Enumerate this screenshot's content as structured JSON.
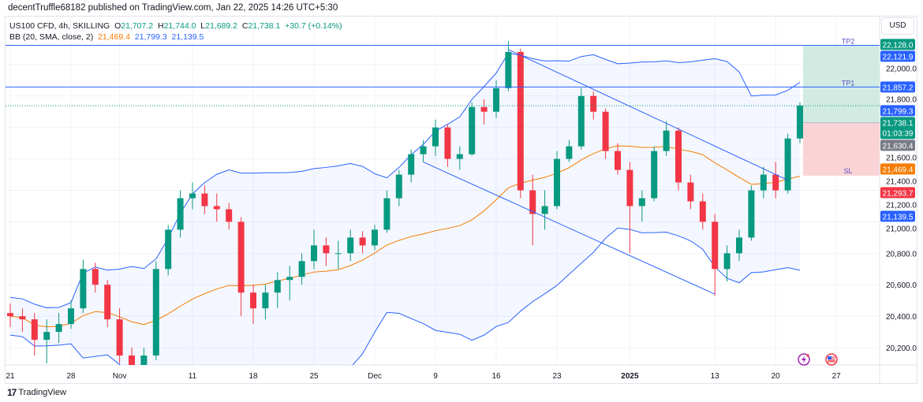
{
  "published": "decentTruffle68182 published on TradingView.com, Jan 22, 2025 14:26 UTC+5:30",
  "legend": {
    "symbol": "US100 CFD, 4h, SKILLING",
    "o_label": "O",
    "o": "21,707.2",
    "h_label": "H",
    "h": "21,744.0",
    "l_label": "L",
    "l": "21,689.2",
    "c_label": "C",
    "c": "21,738.1",
    "change": "+30.7 (+0.14%)",
    "bb_label": "BB (20, SMA, close, 2)",
    "bb_basis": "21,469.4",
    "bb_upper": "21,799.3",
    "bb_lower": "21,139.5"
  },
  "currency_button": "USD",
  "brand": "TradingView",
  "colors": {
    "up": "#089981",
    "down": "#f23645",
    "bb_band": "#2962ff",
    "bb_basis": "#f57c00",
    "tp_zone": "#d1ebe3",
    "sl_zone": "#f9d3d6",
    "grid": "#f0f3fa"
  },
  "icons": [
    "tradingview-logo-icon",
    "lightning-event-icon",
    "us-flag-event-icon"
  ],
  "chart_data": {
    "type": "candlestick",
    "ylim": [
      20090,
      22305
    ],
    "y_ticks": [
      20200,
      20400,
      20600,
      20800,
      21000,
      21200,
      21400,
      21600,
      21800,
      22000
    ],
    "y_tick_labels": [
      "20,200.0",
      "20,400.0",
      "20,600.0",
      "20,800.0",
      "21,000.0",
      "21,200.0",
      "21,400.0",
      "21,600.0",
      "21,800.0",
      "22,000.0"
    ],
    "x_ticks": [
      {
        "label": "21",
        "date": "2024-10-21"
      },
      {
        "label": "28",
        "date": "2024-10-28"
      },
      {
        "label": "Nov",
        "date": "2024-11-01"
      },
      {
        "label": "11",
        "date": "2024-11-11"
      },
      {
        "label": "18",
        "date": "2024-11-18"
      },
      {
        "label": "25",
        "date": "2024-11-25"
      },
      {
        "label": "Dec",
        "date": "2024-12-02"
      },
      {
        "label": "9",
        "date": "2024-12-09"
      },
      {
        "label": "16",
        "date": "2024-12-16"
      },
      {
        "label": "23",
        "date": "2024-12-23"
      },
      {
        "label": "2025",
        "date": "2025-01-02"
      },
      {
        "label": "13",
        "date": "2025-01-13"
      },
      {
        "label": "20",
        "date": "2025-01-20"
      },
      {
        "label": "27",
        "date": "2025-01-27"
      }
    ],
    "grid": true,
    "candles_ohlc": [
      [
        "2024-10-21",
        20420,
        20480,
        20330,
        20400
      ],
      [
        "2024-10-22",
        20400,
        20450,
        20300,
        20380
      ],
      [
        "2024-10-23",
        20380,
        20420,
        20150,
        20250
      ],
      [
        "2024-10-24",
        20250,
        20380,
        20100,
        20300
      ],
      [
        "2024-10-25",
        20300,
        20420,
        20230,
        20350
      ],
      [
        "2024-10-28",
        20350,
        20500,
        20320,
        20450
      ],
      [
        "2024-10-29",
        20450,
        20760,
        20420,
        20700
      ],
      [
        "2024-10-30",
        20700,
        20740,
        20550,
        20600
      ],
      [
        "2024-10-31",
        20600,
        20630,
        20330,
        20380
      ],
      [
        "2024-11-01",
        20380,
        20450,
        20100,
        20150
      ],
      [
        "2024-11-04",
        20150,
        20200,
        19950,
        20050
      ],
      [
        "2024-11-05",
        20050,
        20200,
        20000,
        20150
      ],
      [
        "2024-11-06",
        20150,
        20750,
        20120,
        20700
      ],
      [
        "2024-11-07",
        20700,
        20980,
        20660,
        20950
      ],
      [
        "2024-11-08",
        20950,
        21200,
        20900,
        21150
      ],
      [
        "2024-11-11",
        21150,
        21250,
        21080,
        21180
      ],
      [
        "2024-11-12",
        21180,
        21230,
        21050,
        21100
      ],
      [
        "2024-11-13",
        21100,
        21180,
        21000,
        21080
      ],
      [
        "2024-11-14",
        21080,
        21120,
        20950,
        21000
      ],
      [
        "2024-11-15",
        21000,
        21030,
        20400,
        20550
      ],
      [
        "2024-11-18",
        20550,
        20600,
        20350,
        20450
      ],
      [
        "2024-11-19",
        20450,
        20600,
        20380,
        20550
      ],
      [
        "2024-11-20",
        20550,
        20680,
        20450,
        20630
      ],
      [
        "2024-11-21",
        20630,
        20720,
        20500,
        20650
      ],
      [
        "2024-11-22",
        20650,
        20800,
        20600,
        20750
      ],
      [
        "2024-11-25",
        20750,
        20950,
        20700,
        20850
      ],
      [
        "2024-11-26",
        20850,
        20900,
        20720,
        20800
      ],
      [
        "2024-11-27",
        20800,
        20880,
        20700,
        20800
      ],
      [
        "2024-11-28",
        20800,
        20950,
        20750,
        20900
      ],
      [
        "2024-11-29",
        20900,
        20940,
        20800,
        20850
      ],
      [
        "2024-12-02",
        20850,
        20980,
        20820,
        20950
      ],
      [
        "2024-12-03",
        20950,
        21200,
        20930,
        21150
      ],
      [
        "2024-12-04",
        21150,
        21330,
        21100,
        21300
      ],
      [
        "2024-12-05",
        21300,
        21460,
        21250,
        21430
      ],
      [
        "2024-12-06",
        21430,
        21520,
        21380,
        21480
      ],
      [
        "2024-12-09",
        21480,
        21650,
        21420,
        21600
      ],
      [
        "2024-12-10",
        21600,
        21620,
        21350,
        21400
      ],
      [
        "2024-12-11",
        21400,
        21480,
        21330,
        21430
      ],
      [
        "2024-12-12",
        21430,
        21760,
        21420,
        21730
      ],
      [
        "2024-12-13",
        21730,
        21780,
        21620,
        21700
      ],
      [
        "2024-12-16",
        21700,
        21900,
        21660,
        21850
      ],
      [
        "2024-12-17",
        21850,
        22150,
        21830,
        22080
      ],
      [
        "2024-12-18",
        22080,
        22100,
        21150,
        21200
      ],
      [
        "2024-12-19",
        21200,
        21300,
        20850,
        21050
      ],
      [
        "2024-12-20",
        21050,
        21200,
        20950,
        21100
      ],
      [
        "2024-12-23",
        21100,
        21450,
        21080,
        21400
      ],
      [
        "2024-12-24",
        21400,
        21520,
        21380,
        21480
      ],
      [
        "2024-12-26",
        21480,
        21850,
        21460,
        21800
      ],
      [
        "2024-12-27",
        21800,
        21830,
        21650,
        21700
      ],
      [
        "2024-12-30",
        21700,
        21720,
        21400,
        21450
      ],
      [
        "2024-12-31",
        21450,
        21500,
        21300,
        21330
      ],
      [
        "2025-01-02",
        21330,
        21380,
        20800,
        21100
      ],
      [
        "2025-01-03",
        21100,
        21200,
        21000,
        21150
      ],
      [
        "2025-01-06",
        21150,
        21480,
        21130,
        21450
      ],
      [
        "2025-01-07",
        21450,
        21640,
        21420,
        21580
      ],
      [
        "2025-01-08",
        21580,
        21600,
        21200,
        21250
      ],
      [
        "2025-01-09",
        21250,
        21300,
        21080,
        21130
      ],
      [
        "2025-01-10",
        21130,
        21180,
        20950,
        21000
      ],
      [
        "2025-01-13",
        21000,
        21050,
        20530,
        20700
      ],
      [
        "2025-01-14",
        20700,
        20850,
        20620,
        20800
      ],
      [
        "2025-01-15",
        20800,
        20950,
        20750,
        20900
      ],
      [
        "2025-01-16",
        20900,
        21230,
        20880,
        21200
      ],
      [
        "2025-01-17",
        21200,
        21350,
        21150,
        21300
      ],
      [
        "2025-01-20",
        21300,
        21380,
        21150,
        21200
      ],
      [
        "2025-01-21",
        21200,
        21560,
        21180,
        21530
      ],
      [
        "2025-01-22",
        21530,
        21760,
        21500,
        21738.1
      ]
    ],
    "bollinger": {
      "period": 20,
      "stddev": 2
    },
    "horizontal_lines": [
      {
        "label": "TP2",
        "price": 22121.9
      },
      {
        "label": "TP1",
        "price": 21857.2
      }
    ],
    "last_price": 21738.1,
    "trend_channel": [
      {
        "from": [
          "2024-12-17",
          22095
        ],
        "to": [
          "2025-01-21",
          21265
        ]
      },
      {
        "from": [
          "2024-12-06",
          21380
        ],
        "to": [
          "2025-01-13",
          20540
        ]
      }
    ],
    "position": {
      "entry": 21630.4,
      "target": 22121.9,
      "stop": 21293.7,
      "stop_label": "SL"
    },
    "price_badges": [
      {
        "text": "22,128.0",
        "price": 22128.0,
        "color": "#089981"
      },
      {
        "text": "22,121.9",
        "price": 22121.9,
        "color": "#2962ff"
      },
      {
        "text": "21,857.2",
        "price": 21857.2,
        "color": "#2962ff"
      },
      {
        "text": "21,799.3",
        "price": 21799.3,
        "color": "#2962ff"
      },
      {
        "text": "21,738.1",
        "price": 21738.1,
        "color": "#089981",
        "sub": "01:03:39"
      },
      {
        "text": "21,630.4",
        "price": 21630.4,
        "color": "#787b86"
      },
      {
        "text": "21,469.4",
        "price": 21469.4,
        "color": "#f57c00"
      },
      {
        "text": "21,293.7",
        "price": 21293.7,
        "color": "#f23645"
      },
      {
        "text": "21,139.5",
        "price": 21139.5,
        "color": "#2962ff"
      }
    ]
  }
}
